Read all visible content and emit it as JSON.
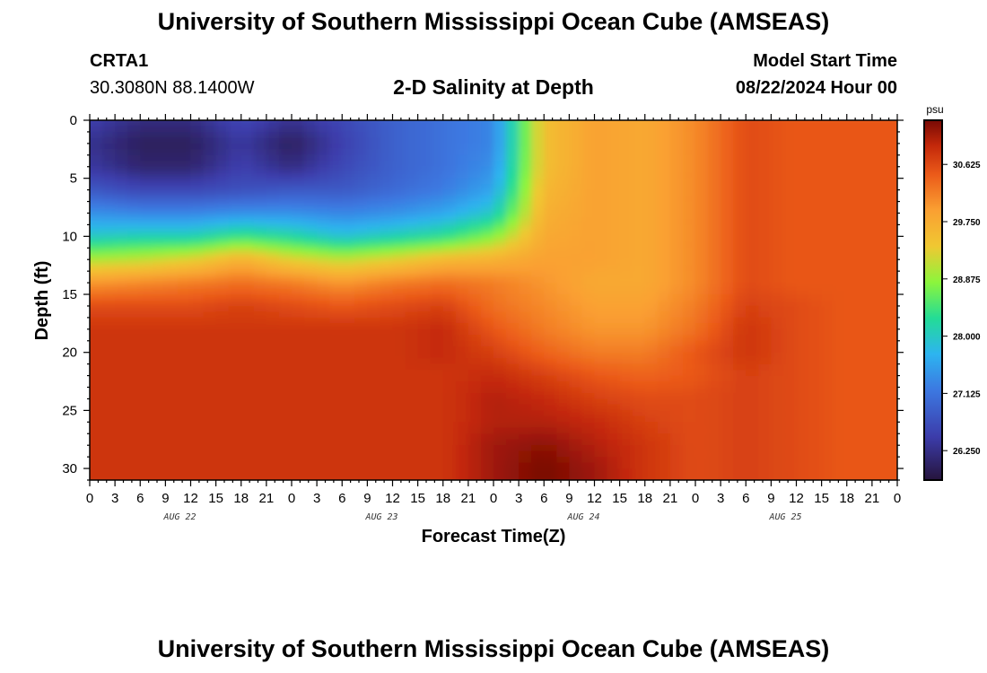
{
  "header": {
    "title": "University of Southern Mississippi Ocean Cube (AMSEAS)",
    "station_id": "CRTA1",
    "station_coords": "30.3080N  88.1400W",
    "plot_title": "2-D Salinity at Depth",
    "start_label": "Model Start Time",
    "start_value": "08/22/2024 Hour 00"
  },
  "footer": {
    "title": "University of Southern Mississippi Ocean Cube (AMSEAS)"
  },
  "chart_data": {
    "type": "heatmap",
    "title": "2-D Salinity at Depth",
    "xlabel": "Forecast Time(Z)",
    "ylabel": "Depth (ft)",
    "x_tick_labels": [
      "0",
      "3",
      "6",
      "9",
      "12",
      "15",
      "18",
      "21",
      "0",
      "3",
      "6",
      "9",
      "12",
      "15",
      "18",
      "21",
      "0",
      "3",
      "6",
      "9",
      "12",
      "15",
      "18",
      "21",
      "0",
      "3",
      "6",
      "9",
      "12",
      "15",
      "18",
      "21",
      "0"
    ],
    "day_labels": [
      "AUG 22",
      "AUG 23",
      "AUG 24",
      "AUG 25"
    ],
    "x_hours_range": [
      0,
      96
    ],
    "y_ticks": [
      0,
      5,
      10,
      15,
      20,
      25,
      30
    ],
    "ylim": [
      0,
      31
    ],
    "colorbar": {
      "unit": "psu",
      "range": [
        25.8,
        31.3
      ],
      "tick_values": [
        26.25,
        27.125,
        28.0,
        28.875,
        29.75,
        30.625
      ],
      "tick_labels": [
        "26.250",
        "27.125",
        "28.000",
        "28.875",
        "29.750",
        "30.625"
      ]
    },
    "depths": [
      0,
      2,
      4,
      6,
      8,
      10,
      12,
      14,
      16,
      18,
      20,
      22,
      24,
      26,
      28,
      30,
      31
    ],
    "times": [
      0,
      6,
      12,
      18,
      24,
      30,
      36,
      42,
      48,
      54,
      60,
      66,
      72,
      78,
      84,
      90,
      96
    ],
    "salinity": [
      [
        26.5,
        26.2,
        26.2,
        26.6,
        26.3,
        26.6,
        26.9,
        27.1,
        27.3,
        29.5,
        29.9,
        29.8,
        30.1,
        30.6,
        30.5,
        30.5,
        30.5
      ],
      [
        26.3,
        26.0,
        26.0,
        26.4,
        26.0,
        26.5,
        26.9,
        27.1,
        27.3,
        29.5,
        29.9,
        29.8,
        30.1,
        30.6,
        30.5,
        30.5,
        30.5
      ],
      [
        26.4,
        26.1,
        26.1,
        26.5,
        26.2,
        26.6,
        26.9,
        27.1,
        27.4,
        29.5,
        29.9,
        29.8,
        30.1,
        30.6,
        30.5,
        30.5,
        30.5
      ],
      [
        26.8,
        26.6,
        26.6,
        26.7,
        26.8,
        26.8,
        27.0,
        27.2,
        27.6,
        29.6,
        29.9,
        29.8,
        30.1,
        30.6,
        30.5,
        30.5,
        30.5
      ],
      [
        27.4,
        27.3,
        27.3,
        27.4,
        27.4,
        27.3,
        27.4,
        27.6,
        28.0,
        29.7,
        29.9,
        29.8,
        30.1,
        30.6,
        30.5,
        30.5,
        30.5
      ],
      [
        28.0,
        28.1,
        28.1,
        28.4,
        28.2,
        27.9,
        28.1,
        28.3,
        28.8,
        29.8,
        29.9,
        29.8,
        30.1,
        30.6,
        30.5,
        30.5,
        30.5
      ],
      [
        29.0,
        29.1,
        29.3,
        29.7,
        29.3,
        29.1,
        29.3,
        29.6,
        29.7,
        29.9,
        29.9,
        29.8,
        30.1,
        30.6,
        30.5,
        30.5,
        30.5
      ],
      [
        30.0,
        30.1,
        30.2,
        30.3,
        30.2,
        30.0,
        30.2,
        30.3,
        30.2,
        30.0,
        29.8,
        29.8,
        30.1,
        30.6,
        30.5,
        30.5,
        30.5
      ],
      [
        30.6,
        30.6,
        30.6,
        30.7,
        30.6,
        30.5,
        30.6,
        30.7,
        30.3,
        30.1,
        29.9,
        29.9,
        30.2,
        30.7,
        30.6,
        30.5,
        30.5
      ],
      [
        30.8,
        30.8,
        30.8,
        30.8,
        30.8,
        30.8,
        30.8,
        30.9,
        30.5,
        30.2,
        30.0,
        30.0,
        30.3,
        30.8,
        30.6,
        30.5,
        30.5
      ],
      [
        30.8,
        30.8,
        30.8,
        30.8,
        30.8,
        30.8,
        30.8,
        30.9,
        30.7,
        30.4,
        30.2,
        30.2,
        30.5,
        30.8,
        30.6,
        30.5,
        30.5
      ],
      [
        30.8,
        30.8,
        30.8,
        30.8,
        30.8,
        30.8,
        30.8,
        30.8,
        30.9,
        30.7,
        30.5,
        30.4,
        30.5,
        30.7,
        30.6,
        30.5,
        30.5
      ],
      [
        30.8,
        30.8,
        30.8,
        30.8,
        30.8,
        30.8,
        30.8,
        30.8,
        31.0,
        30.9,
        30.7,
        30.6,
        30.6,
        30.7,
        30.6,
        30.5,
        30.5
      ],
      [
        30.8,
        30.8,
        30.8,
        30.8,
        30.8,
        30.8,
        30.8,
        30.8,
        31.0,
        31.0,
        30.9,
        30.7,
        30.6,
        30.7,
        30.6,
        30.5,
        30.5
      ],
      [
        30.8,
        30.8,
        30.8,
        30.8,
        30.8,
        30.8,
        30.8,
        30.8,
        31.1,
        31.2,
        31.0,
        30.8,
        30.6,
        30.7,
        30.6,
        30.5,
        30.5
      ],
      [
        30.8,
        30.8,
        30.8,
        30.8,
        30.8,
        30.8,
        30.8,
        30.8,
        31.1,
        31.3,
        31.1,
        30.8,
        30.6,
        30.7,
        30.6,
        30.5,
        30.5
      ],
      [
        30.8,
        30.8,
        30.8,
        30.8,
        30.8,
        30.8,
        30.8,
        30.8,
        31.1,
        31.3,
        31.1,
        30.8,
        30.6,
        30.7,
        30.6,
        30.5,
        30.5
      ]
    ]
  }
}
